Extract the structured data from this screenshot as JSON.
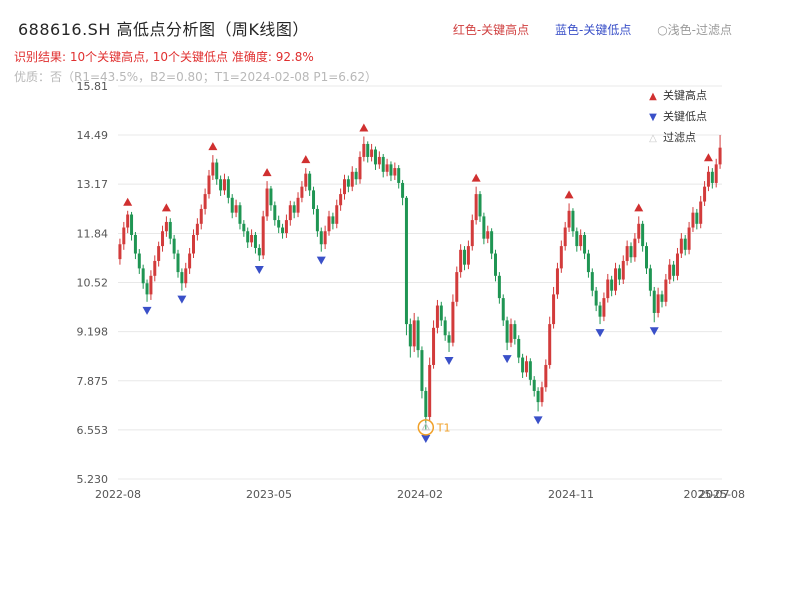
{
  "header": {
    "title": "688616.SH 高低点分析图（周K线图）",
    "legend": [
      {
        "name": "key-high",
        "label": "红色-关键高点",
        "color": "#d04040"
      },
      {
        "name": "key-low",
        "label": "蓝色-关键低点",
        "color": "#3a50c8"
      },
      {
        "name": "filtered",
        "label": "○浅色-过滤点",
        "color": "#9a9a9a"
      }
    ],
    "result_line": "识别结果: 10个关键高点, 10个关键低点  准确度: 92.8%",
    "result_color": "#e03030",
    "quality_line": "优质：否（R1=43.5%，B2=0.80；T1=2024-02-08 P1=6.62）",
    "quality_color": "#b8b8b8"
  },
  "chart_legend": [
    {
      "icon": "triangle-up-icon",
      "glyph": "▲",
      "color": "#d03030",
      "label": "关键高点"
    },
    {
      "icon": "triangle-down-icon",
      "glyph": "▼",
      "color": "#3a50c8",
      "label": "关键低点"
    },
    {
      "icon": "triangle-hollow-icon",
      "glyph": "△",
      "color": "#c8c8c8",
      "label": "过滤点"
    }
  ],
  "chart_data": {
    "type": "candlestick",
    "title": "688616.SH 周K线",
    "y_ticks": [
      "15.81",
      "14.49",
      "13.17",
      "11.84",
      "10.52",
      "9.198",
      "7.875",
      "6.553",
      "5.230"
    ],
    "y_range": [
      5.23,
      15.81
    ],
    "x_ticks": [
      {
        "i": 0,
        "label": "2022-08"
      },
      {
        "i": 39,
        "label": "2023-05"
      },
      {
        "i": 78,
        "label": "2024-02"
      },
      {
        "i": 117,
        "label": "2024-11"
      },
      {
        "i": 152,
        "label": "2025-07"
      },
      {
        "i": 156,
        "label": "2025-08"
      }
    ],
    "colors": {
      "up": "#d23b3b",
      "down": "#1f9553",
      "grid": "#e8e8e8",
      "axis": "#555555",
      "key_high": "#d03030",
      "key_low": "#3a50c8",
      "filtered": "#c8c8c8",
      "t1": "#f0a028"
    },
    "candles": [
      [
        11.15,
        11.7,
        11.0,
        11.55
      ],
      [
        11.55,
        12.15,
        11.4,
        12.0
      ],
      [
        12.0,
        12.45,
        11.85,
        12.35
      ],
      [
        12.35,
        12.42,
        11.65,
        11.8
      ],
      [
        11.8,
        11.88,
        11.15,
        11.3
      ],
      [
        11.3,
        11.42,
        10.75,
        10.9
      ],
      [
        10.9,
        11.0,
        10.35,
        10.5
      ],
      [
        10.5,
        10.6,
        10.0,
        10.2
      ],
      [
        10.2,
        10.85,
        10.05,
        10.7
      ],
      [
        10.7,
        11.25,
        10.55,
        11.1
      ],
      [
        11.1,
        11.62,
        10.95,
        11.5
      ],
      [
        11.5,
        12.05,
        11.35,
        11.9
      ],
      [
        11.9,
        12.3,
        11.75,
        12.15
      ],
      [
        12.15,
        12.25,
        11.55,
        11.7
      ],
      [
        11.7,
        11.8,
        11.15,
        11.3
      ],
      [
        11.3,
        11.4,
        10.65,
        10.8
      ],
      [
        10.8,
        10.9,
        10.3,
        10.5
      ],
      [
        10.5,
        11.05,
        10.38,
        10.9
      ],
      [
        10.9,
        11.45,
        10.75,
        11.3
      ],
      [
        11.3,
        11.95,
        11.18,
        11.8
      ],
      [
        11.8,
        12.25,
        11.65,
        12.1
      ],
      [
        12.1,
        12.62,
        11.95,
        12.5
      ],
      [
        12.5,
        13.05,
        12.35,
        12.9
      ],
      [
        12.9,
        13.55,
        12.78,
        13.4
      ],
      [
        13.4,
        13.95,
        13.28,
        13.75
      ],
      [
        13.75,
        13.85,
        13.15,
        13.3
      ],
      [
        13.3,
        13.4,
        12.85,
        13.0
      ],
      [
        13.0,
        13.45,
        12.88,
        13.3
      ],
      [
        13.3,
        13.38,
        12.65,
        12.8
      ],
      [
        12.8,
        12.9,
        12.25,
        12.4
      ],
      [
        12.4,
        12.75,
        12.28,
        12.6
      ],
      [
        12.6,
        12.68,
        11.95,
        12.1
      ],
      [
        12.1,
        12.2,
        11.75,
        11.9
      ],
      [
        11.9,
        12.0,
        11.45,
        11.6
      ],
      [
        11.6,
        11.95,
        11.48,
        11.8
      ],
      [
        11.8,
        11.88,
        11.3,
        11.45
      ],
      [
        11.45,
        11.55,
        11.1,
        11.25
      ],
      [
        11.25,
        12.45,
        11.15,
        12.3
      ],
      [
        12.3,
        13.25,
        12.18,
        13.05
      ],
      [
        13.05,
        13.12,
        12.45,
        12.6
      ],
      [
        12.6,
        12.7,
        12.05,
        12.2
      ],
      [
        12.2,
        12.32,
        11.85,
        12.0
      ],
      [
        12.0,
        12.1,
        11.7,
        11.85
      ],
      [
        11.85,
        12.35,
        11.72,
        12.2
      ],
      [
        12.2,
        12.72,
        12.05,
        12.6
      ],
      [
        12.6,
        12.7,
        12.25,
        12.4
      ],
      [
        12.4,
        12.95,
        12.28,
        12.8
      ],
      [
        12.8,
        13.25,
        12.68,
        13.1
      ],
      [
        13.1,
        13.6,
        12.98,
        13.45
      ],
      [
        13.45,
        13.52,
        12.85,
        13.0
      ],
      [
        13.0,
        13.1,
        12.35,
        12.5
      ],
      [
        12.5,
        12.6,
        11.75,
        11.9
      ],
      [
        11.9,
        12.0,
        11.35,
        11.55
      ],
      [
        11.55,
        12.05,
        11.42,
        11.9
      ],
      [
        11.9,
        12.45,
        11.78,
        12.3
      ],
      [
        12.3,
        12.4,
        11.95,
        12.1
      ],
      [
        12.1,
        12.75,
        11.98,
        12.6
      ],
      [
        12.6,
        13.05,
        12.45,
        12.9
      ],
      [
        12.9,
        13.42,
        12.75,
        13.3
      ],
      [
        13.3,
        13.4,
        12.95,
        13.1
      ],
      [
        13.1,
        13.65,
        12.98,
        13.5
      ],
      [
        13.5,
        13.6,
        13.15,
        13.3
      ],
      [
        13.3,
        14.05,
        13.18,
        13.9
      ],
      [
        13.9,
        14.45,
        13.78,
        14.25
      ],
      [
        14.25,
        14.32,
        13.75,
        13.9
      ],
      [
        13.9,
        14.25,
        13.78,
        14.1
      ],
      [
        14.1,
        14.18,
        13.55,
        13.7
      ],
      [
        13.7,
        14.05,
        13.58,
        13.9
      ],
      [
        13.9,
        13.98,
        13.35,
        13.5
      ],
      [
        13.5,
        13.85,
        13.38,
        13.7
      ],
      [
        13.7,
        13.78,
        13.25,
        13.4
      ],
      [
        13.4,
        13.75,
        13.28,
        13.6
      ],
      [
        13.6,
        13.68,
        13.05,
        13.2
      ],
      [
        13.2,
        13.28,
        12.6,
        12.8
      ],
      [
        12.8,
        12.85,
        9.1,
        9.4
      ],
      [
        9.4,
        9.55,
        8.5,
        8.8
      ],
      [
        8.8,
        9.7,
        8.65,
        9.5
      ],
      [
        9.5,
        9.6,
        8.5,
        8.7
      ],
      [
        8.7,
        8.8,
        7.4,
        7.6
      ],
      [
        7.6,
        7.7,
        6.55,
        6.9
      ],
      [
        6.9,
        8.5,
        6.8,
        8.3
      ],
      [
        8.3,
        9.5,
        8.2,
        9.3
      ],
      [
        9.3,
        10.05,
        9.15,
        9.9
      ],
      [
        9.9,
        10.0,
        9.35,
        9.5
      ],
      [
        9.5,
        9.6,
        8.95,
        9.1
      ],
      [
        9.1,
        9.2,
        8.65,
        8.9
      ],
      [
        8.9,
        10.2,
        8.8,
        10.0
      ],
      [
        10.0,
        10.95,
        9.88,
        10.8
      ],
      [
        10.8,
        11.55,
        10.65,
        11.4
      ],
      [
        11.4,
        11.5,
        10.85,
        11.0
      ],
      [
        11.0,
        11.65,
        10.88,
        11.5
      ],
      [
        11.5,
        12.35,
        11.38,
        12.2
      ],
      [
        12.2,
        13.1,
        12.08,
        12.9
      ],
      [
        12.9,
        12.98,
        12.15,
        12.3
      ],
      [
        12.3,
        12.4,
        11.55,
        11.7
      ],
      [
        11.7,
        12.05,
        11.58,
        11.9
      ],
      [
        11.9,
        11.98,
        11.15,
        11.3
      ],
      [
        11.3,
        11.4,
        10.55,
        10.7
      ],
      [
        10.7,
        10.8,
        9.95,
        10.1
      ],
      [
        10.1,
        10.2,
        9.35,
        9.5
      ],
      [
        9.5,
        9.6,
        8.7,
        8.9
      ],
      [
        8.9,
        9.55,
        8.78,
        9.4
      ],
      [
        9.4,
        9.5,
        8.85,
        9.0
      ],
      [
        9.0,
        9.1,
        8.35,
        8.5
      ],
      [
        8.5,
        8.6,
        7.95,
        8.1
      ],
      [
        8.1,
        8.55,
        7.98,
        8.4
      ],
      [
        8.4,
        8.48,
        7.75,
        7.9
      ],
      [
        7.9,
        8.0,
        7.45,
        7.6
      ],
      [
        7.6,
        7.7,
        7.05,
        7.3
      ],
      [
        7.3,
        7.85,
        7.18,
        7.7
      ],
      [
        7.7,
        8.45,
        7.58,
        8.3
      ],
      [
        8.3,
        9.6,
        8.2,
        9.4
      ],
      [
        9.4,
        10.4,
        9.28,
        10.2
      ],
      [
        10.2,
        11.05,
        10.08,
        10.9
      ],
      [
        10.9,
        11.65,
        10.78,
        11.5
      ],
      [
        11.5,
        12.15,
        11.38,
        12.0
      ],
      [
        12.0,
        12.65,
        11.88,
        12.45
      ],
      [
        12.45,
        12.52,
        11.75,
        11.9
      ],
      [
        11.9,
        12.0,
        11.35,
        11.5
      ],
      [
        11.5,
        11.95,
        11.38,
        11.8
      ],
      [
        11.8,
        11.88,
        11.15,
        11.3
      ],
      [
        11.3,
        11.4,
        10.65,
        10.8
      ],
      [
        10.8,
        10.9,
        10.15,
        10.3
      ],
      [
        10.3,
        10.4,
        9.75,
        9.9
      ],
      [
        9.9,
        10.0,
        9.4,
        9.6
      ],
      [
        9.6,
        10.25,
        9.48,
        10.1
      ],
      [
        10.1,
        10.75,
        9.98,
        10.6
      ],
      [
        10.6,
        10.7,
        10.15,
        10.3
      ],
      [
        10.3,
        11.05,
        10.18,
        10.9
      ],
      [
        10.9,
        11.0,
        10.45,
        10.6
      ],
      [
        10.6,
        11.25,
        10.48,
        11.1
      ],
      [
        11.1,
        11.65,
        10.98,
        11.5
      ],
      [
        11.5,
        11.6,
        11.05,
        11.2
      ],
      [
        11.2,
        11.85,
        11.08,
        11.7
      ],
      [
        11.7,
        12.3,
        11.58,
        12.1
      ],
      [
        12.1,
        12.18,
        11.35,
        11.5
      ],
      [
        11.5,
        11.6,
        10.75,
        10.9
      ],
      [
        10.9,
        11.0,
        10.15,
        10.3
      ],
      [
        10.3,
        10.4,
        9.45,
        9.7
      ],
      [
        9.7,
        10.38,
        9.58,
        10.2
      ],
      [
        10.2,
        10.3,
        9.85,
        10.0
      ],
      [
        10.0,
        10.75,
        9.88,
        10.6
      ],
      [
        10.6,
        11.15,
        10.48,
        11.0
      ],
      [
        11.0,
        11.1,
        10.55,
        10.7
      ],
      [
        10.7,
        11.45,
        10.58,
        11.3
      ],
      [
        11.3,
        11.85,
        11.18,
        11.7
      ],
      [
        11.7,
        11.8,
        11.25,
        11.4
      ],
      [
        11.4,
        12.15,
        11.28,
        12.0
      ],
      [
        12.0,
        12.55,
        11.88,
        12.4
      ],
      [
        12.4,
        12.5,
        11.95,
        12.1
      ],
      [
        12.1,
        12.85,
        11.98,
        12.7
      ],
      [
        12.7,
        13.25,
        12.58,
        13.1
      ],
      [
        13.1,
        13.65,
        12.98,
        13.5
      ],
      [
        13.5,
        13.6,
        13.05,
        13.2
      ],
      [
        13.2,
        13.85,
        13.08,
        13.7
      ],
      [
        13.7,
        14.49,
        13.58,
        14.15
      ]
    ],
    "key_highs": [
      {
        "i": 2,
        "p": 12.45
      },
      {
        "i": 12,
        "p": 12.3
      },
      {
        "i": 24,
        "p": 13.95
      },
      {
        "i": 38,
        "p": 13.25
      },
      {
        "i": 48,
        "p": 13.6
      },
      {
        "i": 63,
        "p": 14.45
      },
      {
        "i": 92,
        "p": 13.1
      },
      {
        "i": 116,
        "p": 12.65
      },
      {
        "i": 134,
        "p": 12.3
      },
      {
        "i": 152,
        "p": 13.65
      }
    ],
    "key_lows": [
      {
        "i": 7,
        "p": 10.0
      },
      {
        "i": 16,
        "p": 10.3
      },
      {
        "i": 36,
        "p": 11.1
      },
      {
        "i": 52,
        "p": 11.35
      },
      {
        "i": 79,
        "p": 6.55
      },
      {
        "i": 85,
        "p": 8.65
      },
      {
        "i": 100,
        "p": 8.7
      },
      {
        "i": 108,
        "p": 7.05
      },
      {
        "i": 124,
        "p": 9.4
      },
      {
        "i": 138,
        "p": 9.45
      }
    ],
    "t1_annotation": {
      "i": 79,
      "price": 6.62,
      "label": "T1"
    }
  }
}
